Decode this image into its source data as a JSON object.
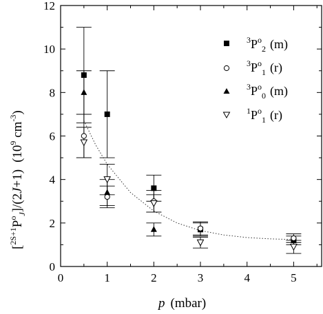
{
  "chart_data": {
    "type": "scatter",
    "xlabel_italic": "p",
    "xlabel_rest": "(mbar)",
    "ylabel": "[2S+1PoJ]/(2J+1) (109 cm-3)",
    "xlim": [
      0,
      5.6
    ],
    "ylim": [
      0,
      12
    ],
    "xticks": [
      0,
      1,
      2,
      3,
      4,
      5
    ],
    "yticks": [
      0,
      2,
      4,
      6,
      8,
      10,
      12
    ],
    "grid": false,
    "legend_position": "top-right",
    "series": [
      {
        "name": "3Po2 (m)",
        "marker": "filled-square",
        "x": [
          0.5,
          1,
          2,
          3,
          5
        ],
        "y": [
          8.8,
          7.0,
          3.6,
          1.7,
          1.2
        ],
        "yerr": [
          2.2,
          2.0,
          0.6,
          0.3,
          0.2
        ]
      },
      {
        "name": "3Po1 (r)",
        "marker": "open-circle",
        "x": [
          0.5,
          1,
          2,
          3,
          5
        ],
        "y": [
          6.0,
          3.2,
          3.0,
          1.75,
          1.3
        ],
        "yerr": [
          1.0,
          0.5,
          0.5,
          0.3,
          0.2
        ]
      },
      {
        "name": "3Po0 (m)",
        "marker": "filled-triangle-up",
        "x": [
          0.5,
          1,
          2
        ],
        "y": [
          8.0,
          3.4,
          1.7
        ],
        "yerr": [
          1.0,
          0.6,
          0.3
        ]
      },
      {
        "name": "1Po1 (r)",
        "marker": "open-triangle-down",
        "x": [
          0.5,
          1,
          2,
          3,
          5
        ],
        "y": [
          5.7,
          4.0,
          2.9,
          1.1,
          0.9
        ],
        "yerr": [
          0.7,
          0.7,
          0.4,
          0.25,
          0.3
        ]
      }
    ],
    "fit_curve": {
      "style": "dotted",
      "x": [
        0.5,
        0.75,
        1,
        1.5,
        2,
        2.5,
        3,
        3.5,
        4,
        4.5,
        5
      ],
      "y": [
        6.7,
        5.6,
        4.7,
        3.4,
        2.55,
        2.0,
        1.65,
        1.45,
        1.33,
        1.27,
        1.24
      ]
    }
  },
  "legend_labels": {
    "s0": {
      "sup": "3",
      "main": "P",
      "sup2": "o",
      "sub": "2",
      "tail": "(m)"
    },
    "s1": {
      "sup": "3",
      "main": "P",
      "sup2": "o",
      "sub": "1",
      "tail": "(r)"
    },
    "s2": {
      "sup": "3",
      "main": "P",
      "sup2": "o",
      "sub": "0",
      "tail": "(m)"
    },
    "s3": {
      "sup": "1",
      "main": "P",
      "sup2": "o",
      "sub": "1",
      "tail": "(r)"
    }
  },
  "ylabel_parts": {
    "open": "[",
    "sup": "2S+1",
    "main": "P",
    "sup2": "o",
    "sub": "J",
    "close": "]/(2",
    "J": "J",
    "close2": "+1)",
    "unit_open": "(10",
    "unit_exp": "9",
    "unit_mid": " cm",
    "unit_exp2": "-3",
    "unit_close": ")"
  }
}
